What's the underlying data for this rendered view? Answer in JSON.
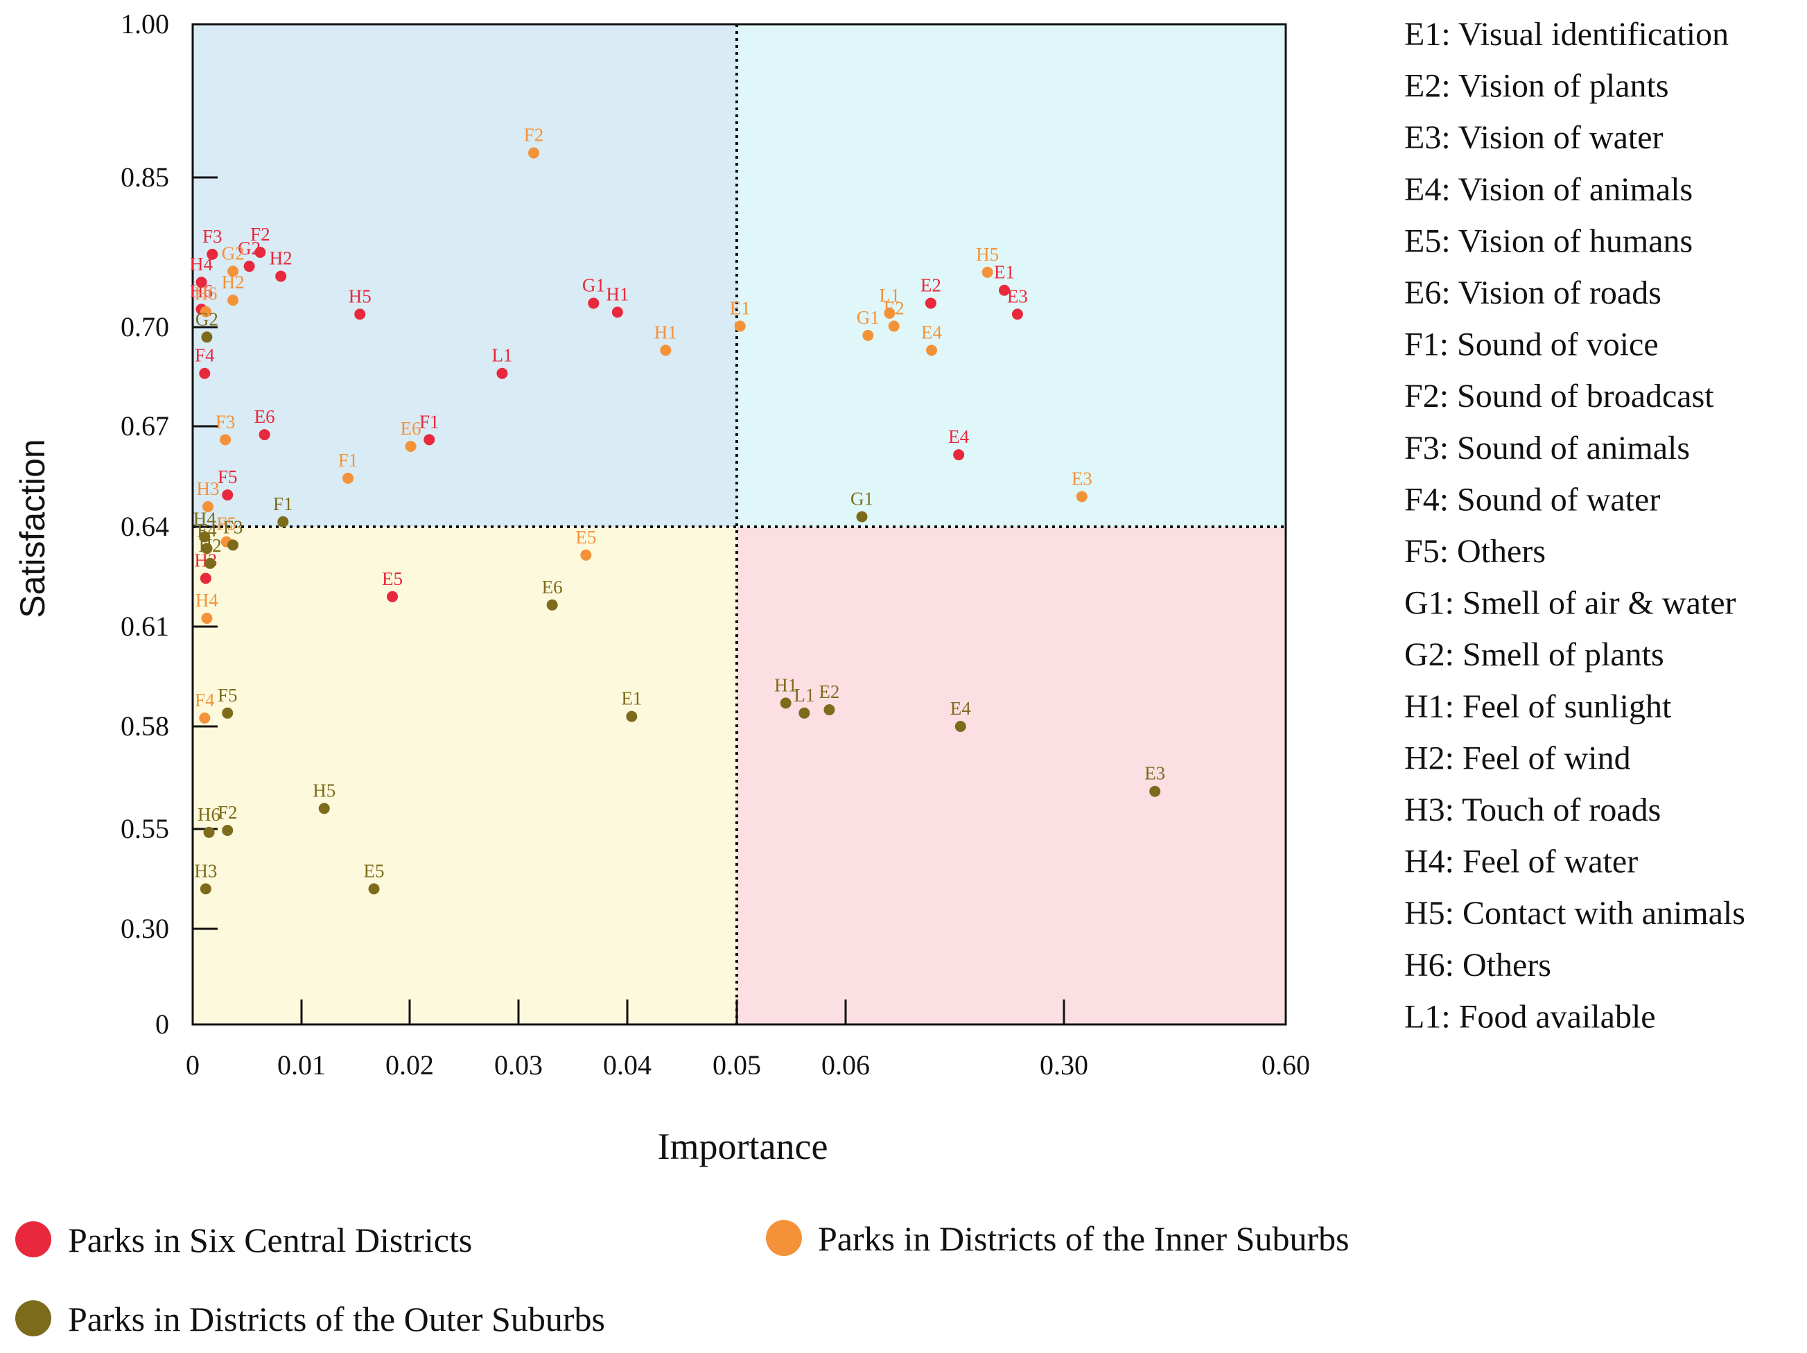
{
  "chart_data": {
    "type": "scatter",
    "title": "",
    "xlabel": "Importance",
    "ylabel": "Satisfaction",
    "x_ticks": [
      "0",
      "0.01",
      "0.02",
      "0.03",
      "0.04",
      "0.05",
      "0.06",
      "0.30",
      "0.60"
    ],
    "y_ticks": [
      "1.00",
      "0.85",
      "0.70",
      "0.67",
      "0.64",
      "0.61",
      "0.58",
      "0.55",
      "0.30",
      "0"
    ],
    "quadrants": {
      "top_left": "#d9ebf4",
      "top_right": "#dff7f8",
      "bottom_left": "#fdf9dc",
      "bottom_right": "#fbdfe3"
    },
    "series": [
      {
        "name": "Parks in Six Central Districts",
        "color": "#e8283c",
        "points": [
          {
            "label": "F3",
            "x": 0.0018,
            "y": 0.773
          },
          {
            "label": "F2",
            "x": 0.0062,
            "y": 0.775
          },
          {
            "label": "G2",
            "x": 0.0052,
            "y": 0.761
          },
          {
            "label": "H2",
            "x": 0.0081,
            "y": 0.751
          },
          {
            "label": "H4",
            "x": 0.0008,
            "y": 0.745
          },
          {
            "label": "H6",
            "x": 0.0008,
            "y": 0.718
          },
          {
            "label": "F4",
            "x": 0.0011,
            "y": 0.686
          },
          {
            "label": "H5",
            "x": 0.0154,
            "y": 0.713
          },
          {
            "label": "G1",
            "x": 0.0369,
            "y": 0.724
          },
          {
            "label": "H1",
            "x": 0.0391,
            "y": 0.715
          },
          {
            "label": "L1",
            "x": 0.0285,
            "y": 0.686
          },
          {
            "label": "E6",
            "x": 0.0066,
            "y": 0.6675
          },
          {
            "label": "F1",
            "x": 0.0218,
            "y": 0.666
          },
          {
            "label": "F5",
            "x": 0.0032,
            "y": 0.6495
          },
          {
            "label": "H3",
            "x": 0.0012,
            "y": 0.6245
          },
          {
            "label": "E5",
            "x": 0.0184,
            "y": 0.619
          },
          {
            "label": "E2",
            "x": 0.1536,
            "y": 0.724
          },
          {
            "label": "E1",
            "x": 0.2345,
            "y": 0.737
          },
          {
            "label": "E3",
            "x": 0.2489,
            "y": 0.713
          },
          {
            "label": "E4",
            "x": 0.1843,
            "y": 0.6615
          }
        ]
      },
      {
        "name": "Parks in Districts of the Inner Suburbs",
        "color": "#f4923a",
        "points": [
          {
            "label": "F2",
            "x": 0.0314,
            "y": 0.874
          },
          {
            "label": "G2",
            "x": 0.0037,
            "y": 0.756
          },
          {
            "label": "H2",
            "x": 0.0037,
            "y": 0.727
          },
          {
            "label": "H6",
            "x": 0.0012,
            "y": 0.7155
          },
          {
            "label": "H1",
            "x": 0.0435,
            "y": 0.693
          },
          {
            "label": "F3",
            "x": 0.003,
            "y": 0.666
          },
          {
            "label": "E6",
            "x": 0.0201,
            "y": 0.664
          },
          {
            "label": "F1",
            "x": 0.0143,
            "y": 0.6545
          },
          {
            "label": "H3",
            "x": 0.0014,
            "y": 0.646
          },
          {
            "label": "F5",
            "x": 0.0031,
            "y": 0.6355
          },
          {
            "label": "E5",
            "x": 0.0362,
            "y": 0.6315
          },
          {
            "label": "H4",
            "x": 0.0013,
            "y": 0.6125
          },
          {
            "label": "F4",
            "x": 0.0011,
            "y": 0.5825
          },
          {
            "label": "E1",
            "x": 0.0503,
            "y": 0.701
          },
          {
            "label": "H5",
            "x": 0.2159,
            "y": 0.755
          },
          {
            "label": "L1",
            "x": 0.1083,
            "y": 0.714
          },
          {
            "label": "G1",
            "x": 0.0846,
            "y": 0.6975
          },
          {
            "label": "E2",
            "x": 0.1131,
            "y": 0.701
          },
          {
            "label": "E4",
            "x": 0.1545,
            "y": 0.693
          },
          {
            "label": "E3",
            "x": 0.3242,
            "y": 0.649
          }
        ]
      },
      {
        "name": "Parks in Districts of the Outer Suburbs",
        "color": "#7d6b1c",
        "points": [
          {
            "label": "G2",
            "x": 0.0013,
            "y": 0.697
          },
          {
            "label": "F1",
            "x": 0.0083,
            "y": 0.6415
          },
          {
            "label": "H4",
            "x": 0.0011,
            "y": 0.637
          },
          {
            "label": "F3",
            "x": 0.0037,
            "y": 0.6345
          },
          {
            "label": "F4",
            "x": 0.0013,
            "y": 0.6335
          },
          {
            "label": "H2",
            "x": 0.0016,
            "y": 0.629
          },
          {
            "label": "E6",
            "x": 0.0331,
            "y": 0.6165
          },
          {
            "label": "E1",
            "x": 0.0404,
            "y": 0.583
          },
          {
            "label": "F5",
            "x": 0.0032,
            "y": 0.584
          },
          {
            "label": "H5",
            "x": 0.0121,
            "y": 0.556
          },
          {
            "label": "F2",
            "x": 0.0032,
            "y": 0.5465
          },
          {
            "label": "H6",
            "x": 0.0015,
            "y": 0.5415
          },
          {
            "label": "H3",
            "x": 0.0012,
            "y": 0.4
          },
          {
            "label": "E5",
            "x": 0.0167,
            "y": 0.4
          },
          {
            "label": "G1",
            "x": 0.0779,
            "y": 0.643
          },
          {
            "label": "H1",
            "x": 0.0545,
            "y": 0.587
          },
          {
            "label": "L1",
            "x": 0.0562,
            "y": 0.584
          },
          {
            "label": "E2",
            "x": 0.0585,
            "y": 0.585
          },
          {
            "label": "E4",
            "x": 0.1863,
            "y": 0.58
          },
          {
            "label": "E3",
            "x": 0.423,
            "y": 0.561
          }
        ]
      }
    ],
    "codes": [
      "E1: Visual identification",
      "E2: Vision of plants",
      "E3: Vision of water",
      "E4: Vision of animals",
      "E5: Vision of humans",
      "E6: Vision of roads",
      "F1: Sound of voice",
      "F2: Sound of broadcast",
      "F3: Sound of animals",
      "F4: Sound of water",
      "F5: Others",
      "G1: Smell of air & water",
      "G2: Smell of plants",
      "H1: Feel of sunlight",
      "H2: Feel of wind",
      "H3: Touch of roads",
      "H4: Feel of water",
      "H5: Contact with animals",
      "H6: Others",
      "L1: Food available"
    ]
  }
}
